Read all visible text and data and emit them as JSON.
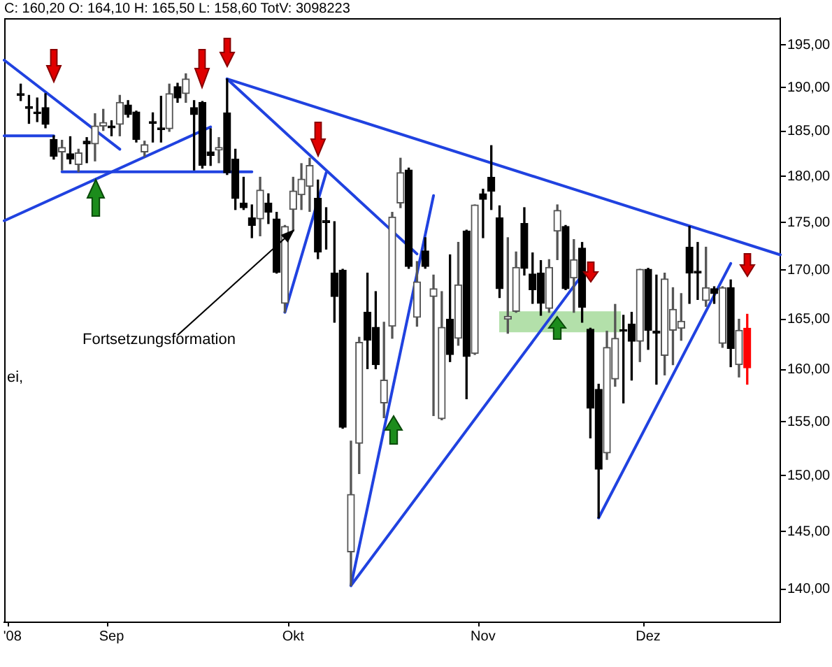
{
  "chart_data": {
    "type": "candlestick",
    "title": "C: 160,20 O: 164,10 H: 165,50 L: 158,60 TotV: 3098223",
    "categories": [
      null,
      "'08",
      null,
      null,
      null,
      null,
      null,
      null,
      null,
      null,
      null,
      null,
      null,
      "Sep",
      null,
      null,
      null,
      null,
      null,
      null,
      null,
      null,
      null,
      null,
      null,
      null,
      null,
      null,
      null,
      null,
      null,
      null,
      null,
      null,
      null,
      "Okt",
      null,
      null,
      null,
      null,
      null,
      null,
      null,
      null,
      null,
      null,
      null,
      null,
      null,
      null,
      null,
      null,
      null,
      null,
      null,
      null,
      null,
      null,
      "Nov",
      null,
      null,
      null,
      null,
      null,
      null,
      null,
      null,
      null,
      null,
      null,
      null,
      null,
      null,
      null,
      null,
      null,
      null,
      null,
      "Dez",
      null,
      null,
      null,
      null,
      null,
      null,
      null,
      null,
      null,
      null,
      null,
      null,
      null,
      null,
      null,
      null
    ],
    "series": [
      {
        "ohlc": [
          null,
          null,
          [
            189.3,
            190.4,
            188.5,
            189.1
          ],
          [
            187.8,
            189.1,
            185.9,
            187.6
          ],
          [
            187.2,
            188.8,
            186.1,
            187.0
          ],
          [
            187.7,
            189.3,
            185.4,
            185.8
          ],
          [
            184.1,
            184.5,
            181.9,
            182.2
          ],
          [
            182.7,
            184.0,
            180.7,
            183.2
          ],
          [
            182.5,
            184.4,
            181.4,
            181.9
          ],
          [
            181.3,
            183.0,
            180.5,
            182.6
          ],
          [
            183.9,
            184.3,
            181.5,
            183.6
          ],
          [
            183.6,
            187.0,
            181.7,
            185.6
          ],
          [
            185.6,
            187.5,
            185.1,
            186.0
          ],
          [
            185.6,
            186.2,
            184.5,
            185.4
          ],
          [
            185.8,
            189.1,
            184.5,
            188.3
          ],
          [
            188.0,
            188.5,
            186.6,
            186.9
          ],
          [
            187.2,
            187.3,
            183.8,
            184.1
          ],
          [
            182.7,
            183.9,
            182.2,
            183.5
          ],
          [
            186.1,
            187.1,
            183.8,
            185.9
          ],
          [
            185.4,
            189.0,
            183.8,
            185.2
          ],
          [
            185.3,
            190.4,
            185.0,
            189.3
          ],
          [
            190.1,
            190.5,
            188.3,
            188.8
          ],
          [
            189.3,
            191.6,
            188.3,
            191.0
          ],
          [
            187.7,
            188.5,
            180.7,
            186.9
          ],
          [
            188.3,
            188.4,
            180.9,
            181.2
          ],
          [
            182.7,
            185.3,
            181.2,
            182.3
          ],
          [
            182.9,
            184.3,
            181.5,
            183.2
          ],
          [
            187.1,
            191.0,
            180.2,
            180.4
          ],
          [
            181.9,
            183.0,
            176.4,
            177.6
          ],
          [
            177.1,
            179.9,
            176.4,
            176.6
          ],
          [
            175.5,
            176.9,
            173.4,
            174.7
          ],
          [
            175.4,
            179.9,
            173.6,
            178.5
          ],
          [
            177.1,
            178.1,
            174.9,
            176.1
          ],
          [
            175.4,
            176.1,
            169.7,
            169.8
          ],
          [
            166.6,
            174.7,
            165.7,
            174.6
          ],
          [
            176.4,
            179.9,
            174.1,
            178.4
          ],
          [
            178.0,
            181.4,
            176.4,
            179.7
          ],
          [
            178.9,
            182.0,
            176.2,
            181.2
          ],
          [
            177.6,
            179.6,
            171.2,
            171.9
          ],
          [
            175.2,
            176.6,
            172.2,
            175.0
          ],
          [
            169.7,
            175.1,
            164.7,
            167.3
          ],
          [
            170.0,
            170.1,
            154.4,
            154.5
          ],
          [
            143.2,
            153.2,
            140.3,
            148.3
          ],
          [
            153.0,
            163.2,
            150.2,
            162.7
          ],
          [
            165.7,
            169.7,
            160.1,
            162.9
          ],
          [
            164.2,
            167.8,
            160.1,
            160.5
          ],
          [
            156.8,
            164.7,
            155.4,
            159.0
          ],
          [
            164.3,
            176.1,
            163.1,
            175.6
          ],
          [
            177.1,
            182.0,
            176.6,
            180.4
          ],
          [
            180.7,
            180.9,
            170.2,
            170.4
          ],
          [
            165.2,
            170.9,
            164.3,
            168.8
          ],
          [
            172.0,
            173.4,
            170.2,
            170.4
          ],
          [
            167.3,
            169.5,
            155.6,
            168.1
          ],
          [
            155.3,
            167.8,
            155.2,
            164.2
          ],
          [
            165.0,
            171.6,
            160.8,
            161.5
          ],
          [
            163.1,
            172.9,
            162.4,
            168.5
          ],
          [
            174.1,
            174.2,
            157.2,
            161.3
          ],
          [
            161.6,
            176.9,
            161.5,
            176.9
          ],
          [
            178.1,
            178.6,
            173.4,
            177.5
          ],
          [
            179.9,
            183.4,
            176.4,
            178.4
          ],
          [
            175.5,
            176.8,
            167.2,
            168.1
          ],
          [
            165.0,
            173.4,
            163.6,
            165.3
          ],
          [
            165.8,
            171.9,
            165.7,
            170.3
          ],
          [
            174.9,
            176.6,
            169.5,
            170.2
          ],
          [
            169.6,
            171.8,
            166.6,
            168.0
          ],
          [
            169.7,
            171.0,
            165.4,
            166.6
          ],
          [
            166.1,
            171.1,
            165.7,
            170.3
          ],
          [
            174.1,
            176.9,
            171.1,
            176.3
          ],
          [
            174.6,
            174.7,
            168.0,
            168.1
          ],
          [
            169.2,
            173.2,
            165.7,
            171.1
          ],
          [
            172.3,
            172.9,
            164.7,
            166.2
          ],
          [
            164.0,
            164.1,
            153.5,
            156.3
          ],
          [
            158.1,
            158.6,
            146.2,
            150.6
          ],
          [
            152.1,
            163.8,
            151.5,
            162.2
          ],
          [
            159.1,
            166.5,
            158.4,
            163.1
          ],
          [
            163.8,
            165.4,
            156.8,
            163.8
          ],
          [
            164.5,
            165.7,
            159.0,
            162.8
          ],
          [
            162.8,
            170.1,
            160.8,
            170.1
          ],
          [
            170.1,
            170.2,
            162.0,
            163.9
          ],
          [
            163.8,
            169.5,
            158.6,
            163.6
          ],
          [
            161.4,
            169.7,
            159.5,
            169.1
          ],
          [
            163.9,
            168.2,
            160.5,
            166.0
          ],
          [
            164.1,
            167.6,
            162.9,
            164.8
          ],
          [
            172.4,
            174.6,
            166.6,
            169.7
          ],
          [
            169.9,
            172.9,
            167.0,
            169.7
          ],
          [
            166.9,
            172.4,
            166.3,
            168.2
          ],
          [
            168.1,
            168.3,
            166.6,
            167.6
          ],
          [
            162.6,
            168.3,
            162.2,
            168.2
          ],
          [
            168.2,
            169.0,
            160.3,
            162.1
          ],
          [
            160.5,
            165.0,
            159.3,
            163.9
          ],
          [
            164.1,
            165.5,
            158.6,
            160.2
          ],
          null,
          null,
          null,
          null
        ],
        "colors": [
          null,
          null,
          "#000000",
          "#000000",
          "#000000",
          "#000000",
          "#000000",
          "#555555",
          "#000000",
          "#555555",
          "#000000",
          "#555555",
          "#555555",
          "#000000",
          "#555555",
          "#000000",
          "#000000",
          "#555555",
          "#000000",
          "#000000",
          "#555555",
          "#000000",
          "#555555",
          "#000000",
          "#000000",
          "#000000",
          "#555555",
          "#000000",
          "#000000",
          "#000000",
          "#000000",
          "#555555",
          "#000000",
          "#000000",
          "#555555",
          "#555555",
          "#555555",
          "#555555",
          "#000000",
          "#000000",
          "#000000",
          "#000000",
          "#555555",
          "#555555",
          "#000000",
          "#000000",
          "#555555",
          "#555555",
          "#555555",
          "#000000",
          "#555555",
          "#000000",
          "#555555",
          "#555555",
          "#000000",
          "#555555",
          "#000000",
          "#555555",
          "#000000",
          "#000000",
          "#000000",
          "#555555",
          "#555555",
          "#000000",
          "#000000",
          "#000000",
          "#555555",
          "#555555",
          "#000000",
          "#555555",
          "#000000",
          "#000000",
          "#000000",
          "#555555",
          "#555555",
          "#000000",
          "#000000",
          "#555555",
          "#000000",
          "#000000",
          "#555555",
          "#555555",
          "#555555",
          "#000000",
          "#000000",
          "#555555",
          "#000000",
          "#555555",
          "#000000",
          "#555555",
          "#ff0000",
          null,
          null,
          null,
          null
        ]
      },
      {
        "type": "line",
        "color": "#2042e0",
        "values": [
          193.2,
          null,
          null,
          null,
          null,
          null,
          null,
          null,
          null,
          null,
          null,
          null,
          null,
          null,
          183.0,
          null,
          null,
          null,
          null,
          null,
          null,
          null,
          null,
          null,
          null,
          null,
          null,
          null,
          null,
          null,
          null,
          null,
          null,
          null,
          null,
          null,
          null,
          null,
          null,
          null,
          null,
          null,
          null,
          null,
          null,
          null,
          null,
          null,
          null,
          null,
          null,
          null,
          null,
          null,
          null,
          null,
          null,
          null,
          null,
          null,
          null,
          null,
          null,
          null,
          null,
          null,
          null,
          null,
          null,
          null,
          null,
          null,
          null,
          null,
          null,
          null,
          null,
          null,
          null,
          null,
          null,
          null,
          null,
          null,
          null,
          null,
          null,
          null,
          null,
          null,
          null,
          null,
          null,
          null,
          null
        ]
      },
      {
        "type": "line",
        "color": "#2042e0",
        "values": [
          184.5,
          null,
          null,
          null,
          null,
          null,
          184.5,
          null,
          null,
          null,
          null,
          null,
          null,
          null,
          null,
          null,
          null,
          null,
          null,
          null,
          null,
          null,
          null,
          null,
          null,
          null,
          null,
          null,
          null,
          null,
          null,
          null,
          null,
          null,
          null,
          null,
          null,
          null,
          null,
          null,
          null,
          null,
          null,
          null,
          null,
          null,
          null,
          null,
          null,
          null,
          null,
          null,
          null,
          null,
          null,
          null,
          null,
          null,
          null,
          null,
          null,
          null,
          null,
          null,
          null,
          null,
          null,
          null,
          null,
          null,
          null,
          null,
          null,
          null,
          null,
          null,
          null,
          null,
          null,
          null,
          null,
          null,
          null,
          null,
          null,
          null,
          null,
          null,
          null,
          null,
          null,
          null,
          null,
          null,
          null
        ]
      },
      {
        "type": "line",
        "color": "#2042e0",
        "values": [
          175.2,
          null,
          null,
          null,
          null,
          null,
          null,
          null,
          null,
          null,
          null,
          null,
          null,
          null,
          null,
          null,
          null,
          null,
          null,
          null,
          null,
          null,
          null,
          null,
          null,
          185.5,
          null,
          null,
          null,
          null,
          null,
          null,
          null,
          null,
          null,
          null,
          null,
          null,
          null,
          null,
          null,
          null,
          null,
          null,
          null,
          null,
          null,
          null,
          null,
          null,
          null,
          null,
          null,
          null,
          null,
          null,
          null,
          null,
          null,
          null,
          null,
          null,
          null,
          null,
          null,
          null,
          null,
          null,
          null,
          null,
          null,
          null,
          null,
          null,
          null,
          null,
          null,
          null,
          null,
          null,
          null,
          null,
          null,
          null,
          null,
          null,
          null,
          null,
          null,
          null,
          null,
          null,
          null,
          null,
          null
        ]
      },
      {
        "type": "line",
        "color": "#2042e0",
        "values": [
          null,
          null,
          null,
          null,
          null,
          null,
          null,
          180.5,
          null,
          null,
          null,
          null,
          null,
          null,
          null,
          null,
          null,
          null,
          null,
          null,
          null,
          null,
          null,
          null,
          null,
          null,
          null,
          null,
          null,
          null,
          180.5,
          null,
          null,
          null,
          null,
          null,
          null,
          null,
          null,
          null,
          null,
          null,
          null,
          null,
          null,
          null,
          null,
          null,
          null,
          null,
          null,
          null,
          null,
          null,
          null,
          null,
          null,
          null,
          null,
          null,
          null,
          null,
          null,
          null,
          null,
          null,
          null,
          null,
          null,
          null,
          null,
          null,
          null,
          null,
          null,
          null,
          null,
          null,
          null,
          null,
          null,
          null,
          null,
          null,
          null,
          null,
          null,
          null,
          null,
          null,
          null,
          null,
          null,
          null,
          null
        ]
      },
      {
        "type": "line",
        "color": "#2042e0",
        "values": [
          null,
          null,
          null,
          null,
          null,
          null,
          null,
          null,
          null,
          null,
          null,
          null,
          null,
          null,
          null,
          null,
          null,
          null,
          null,
          null,
          null,
          null,
          null,
          null,
          null,
          null,
          null,
          191.0,
          null,
          null,
          null,
          null,
          null,
          null,
          null,
          null,
          null,
          null,
          null,
          null,
          null,
          null,
          null,
          null,
          null,
          null,
          null,
          null,
          null,
          null,
          null,
          null,
          null,
          null,
          null,
          null,
          null,
          null,
          null,
          null,
          null,
          null,
          null,
          null,
          null,
          null,
          null,
          null,
          null,
          null,
          null,
          null,
          null,
          null,
          null,
          null,
          null,
          null,
          null,
          null,
          null,
          null,
          null,
          null,
          null,
          null,
          null,
          null,
          null,
          null,
          null,
          null,
          null,
          null,
          171.6
        ]
      },
      {
        "type": "line",
        "color": "#2042e0",
        "values": [
          null,
          null,
          null,
          null,
          null,
          null,
          null,
          null,
          null,
          null,
          null,
          null,
          null,
          null,
          null,
          null,
          null,
          null,
          null,
          null,
          null,
          null,
          null,
          null,
          null,
          null,
          null,
          191.0,
          null,
          null,
          null,
          null,
          null,
          null,
          null,
          null,
          null,
          null,
          null,
          null,
          null,
          null,
          null,
          null,
          null,
          null,
          null,
          null,
          null,
          null,
          171.7,
          null,
          null,
          null,
          null,
          null,
          null,
          null,
          null,
          null,
          null,
          null,
          null,
          null,
          null,
          null,
          null,
          null,
          null,
          null,
          null,
          null,
          null,
          null,
          null,
          null,
          null,
          null,
          null,
          null,
          null,
          null,
          null,
          null,
          null,
          null,
          null,
          null,
          null,
          null,
          null,
          null,
          null,
          null,
          null
        ]
      },
      {
        "type": "line",
        "color": "#2042e0",
        "values": [
          null,
          null,
          null,
          null,
          null,
          null,
          null,
          null,
          null,
          null,
          null,
          null,
          null,
          null,
          null,
          null,
          null,
          null,
          null,
          null,
          null,
          null,
          null,
          null,
          null,
          null,
          null,
          null,
          null,
          null,
          null,
          null,
          null,
          null,
          165.7,
          null,
          null,
          null,
          null,
          180.4,
          null,
          null,
          null,
          null,
          null,
          null,
          null,
          null,
          null,
          null,
          null,
          null,
          null,
          null,
          null,
          null,
          null,
          null,
          null,
          null,
          null,
          null,
          null,
          null,
          null,
          null,
          null,
          null,
          null,
          null,
          null,
          null,
          null,
          null,
          null,
          null,
          null,
          null,
          null,
          null,
          null,
          null,
          null,
          null,
          null,
          null,
          null,
          null,
          null,
          null,
          null,
          null,
          null,
          null,
          null
        ]
      },
      {
        "type": "line",
        "color": "#2042e0",
        "values": [
          null,
          null,
          null,
          null,
          null,
          null,
          null,
          null,
          null,
          null,
          null,
          null,
          null,
          null,
          null,
          null,
          null,
          null,
          null,
          null,
          null,
          null,
          null,
          null,
          null,
          null,
          null,
          null,
          null,
          null,
          null,
          null,
          null,
          null,
          null,
          null,
          null,
          null,
          null,
          null,
          null,
          null,
          140.3,
          null,
          null,
          null,
          null,
          null,
          null,
          null,
          null,
          null,
          177.9,
          null,
          null,
          null,
          null,
          null,
          null,
          null,
          null,
          null,
          null,
          null,
          null,
          null,
          null,
          null,
          null,
          null,
          null,
          null,
          null,
          null,
          null,
          null,
          null,
          null,
          null,
          null,
          null,
          null,
          null,
          null,
          null,
          null,
          null,
          null,
          null,
          null,
          null,
          null,
          null,
          null,
          null
        ]
      },
      {
        "type": "line",
        "color": "#2042e0",
        "values": [
          null,
          null,
          null,
          null,
          null,
          null,
          null,
          null,
          null,
          null,
          null,
          null,
          null,
          null,
          null,
          null,
          null,
          null,
          null,
          null,
          null,
          null,
          null,
          null,
          null,
          null,
          null,
          null,
          null,
          null,
          null,
          null,
          null,
          null,
          null,
          null,
          null,
          null,
          null,
          null,
          null,
          null,
          140.3,
          null,
          null,
          null,
          null,
          null,
          null,
          null,
          null,
          null,
          null,
          null,
          null,
          null,
          null,
          null,
          null,
          null,
          null,
          null,
          null,
          null,
          null,
          null,
          null,
          null,
          null,
          null,
          169.5,
          null,
          null,
          null,
          null,
          null,
          null,
          null,
          null,
          null,
          null,
          null,
          null,
          null,
          null,
          null,
          null,
          null,
          null,
          null,
          null,
          null,
          null,
          null,
          null
        ]
      },
      {
        "type": "line",
        "color": "#2042e0",
        "values": [
          null,
          null,
          null,
          null,
          null,
          null,
          null,
          null,
          null,
          null,
          null,
          null,
          null,
          null,
          null,
          null,
          null,
          null,
          null,
          null,
          null,
          null,
          null,
          null,
          null,
          null,
          null,
          null,
          null,
          null,
          null,
          null,
          null,
          null,
          null,
          null,
          null,
          null,
          null,
          null,
          null,
          null,
          null,
          null,
          null,
          null,
          null,
          null,
          null,
          null,
          null,
          null,
          null,
          null,
          null,
          null,
          null,
          null,
          null,
          null,
          null,
          null,
          null,
          null,
          null,
          null,
          null,
          null,
          null,
          null,
          null,
          null,
          146.2,
          null,
          null,
          null,
          null,
          null,
          null,
          null,
          null,
          null,
          null,
          null,
          null,
          null,
          null,
          null,
          170.7,
          null,
          null,
          null,
          null,
          null,
          null
        ]
      }
    ],
    "bands": [
      {
        "axis": "y",
        "from": 163.7,
        "to": 165.8,
        "color": "#b3e0aa"
      }
    ],
    "ylim": [
      137.2,
      198.2
    ],
    "yticks": [
      {
        "value": 140,
        "label": "140,00"
      },
      {
        "value": 145,
        "label": "145,00"
      },
      {
        "value": 150,
        "label": "150,00"
      },
      {
        "value": 155,
        "label": "155,00"
      },
      {
        "value": 160,
        "label": "160,00"
      },
      {
        "value": 165,
        "label": "165,00"
      },
      {
        "value": 170,
        "label": "170,00"
      },
      {
        "value": 175,
        "label": "175,00"
      },
      {
        "value": 180,
        "label": "180,00"
      },
      {
        "value": 185,
        "label": "185,00"
      },
      {
        "value": 190,
        "label": "190,00"
      },
      {
        "value": 195,
        "label": "195,00"
      }
    ],
    "log": true,
    "annotations": [
      {
        "text": "Fortsetzungsformation",
        "x": "Okt",
        "y": 174.1
      },
      "ei,"
    ]
  }
}
